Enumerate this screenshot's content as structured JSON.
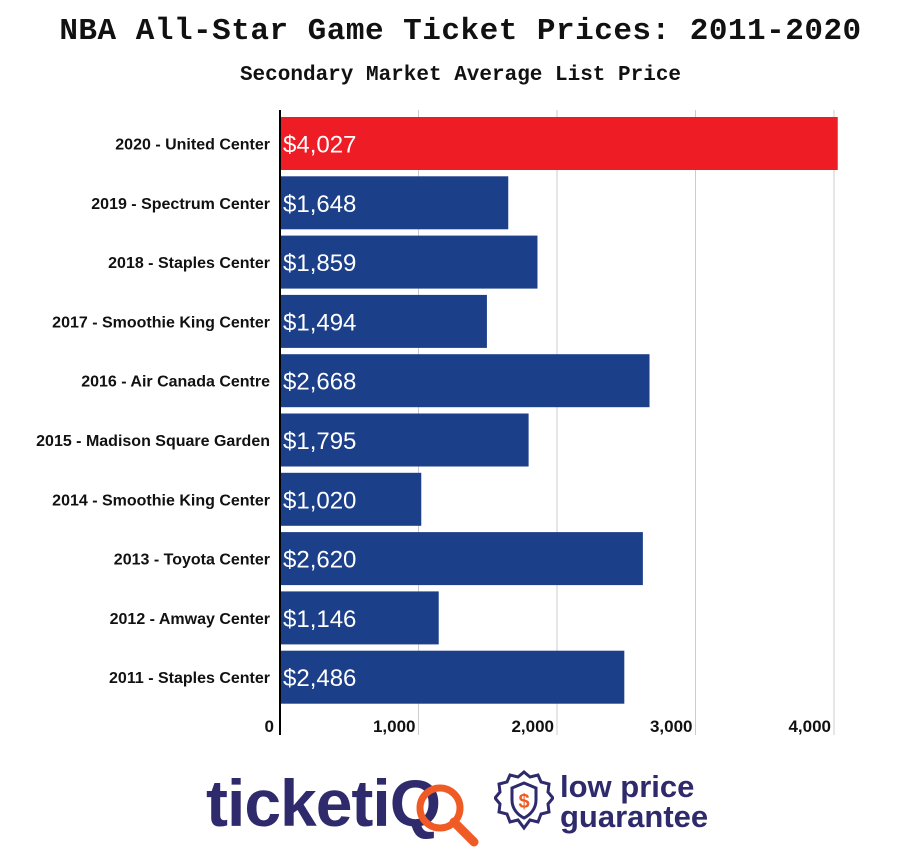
{
  "title": "NBA All-Star Game Ticket Prices: 2011-2020",
  "subtitle": "Secondary Market Average List Price",
  "chart_data": {
    "type": "bar",
    "orientation": "horizontal",
    "categories": [
      "2020 - United Center",
      "2019 - Spectrum Center",
      "2018 - Staples Center",
      "2017 - Smoothie King Center",
      "2016 - Air Canada Centre",
      "2015 - Madison Square Garden",
      "2014 - Smoothie King Center",
      "2013 - Toyota Center",
      "2012 - Amway Center",
      "2011 - Staples Center"
    ],
    "values": [
      4027,
      1648,
      1859,
      1494,
      2668,
      1795,
      1020,
      2620,
      1146,
      2486
    ],
    "data_labels": [
      "$4,027",
      "$1,648",
      "$1,859",
      "$1,494",
      "$2,668",
      "$1,795",
      "$1,020",
      "$2,620",
      "$1,146",
      "$2,486"
    ],
    "xlim": [
      0,
      4000
    ],
    "x_ticks": [
      0,
      1000,
      2000,
      3000,
      4000
    ],
    "x_tick_labels": [
      "0",
      "1,000",
      "2,000",
      "3,000",
      "4,000"
    ],
    "grid": true,
    "colors": {
      "highlight": "#ee1c25",
      "default": "#1c3f8a",
      "grid": "#cccccc",
      "axis": "#000000"
    },
    "highlight_index": 0
  },
  "brand": {
    "wordmark_main": "ticket",
    "wordmark_iq": "iQ",
    "slogan_line1": "low price",
    "slogan_line2": "guarantee",
    "badge_symbol": "$",
    "colors": {
      "navy": "#2e2a6b",
      "orange": "#f05a24"
    },
    "badge_icon": "shield-dollar-icon",
    "magnifier_icon": "magnifier-icon"
  }
}
